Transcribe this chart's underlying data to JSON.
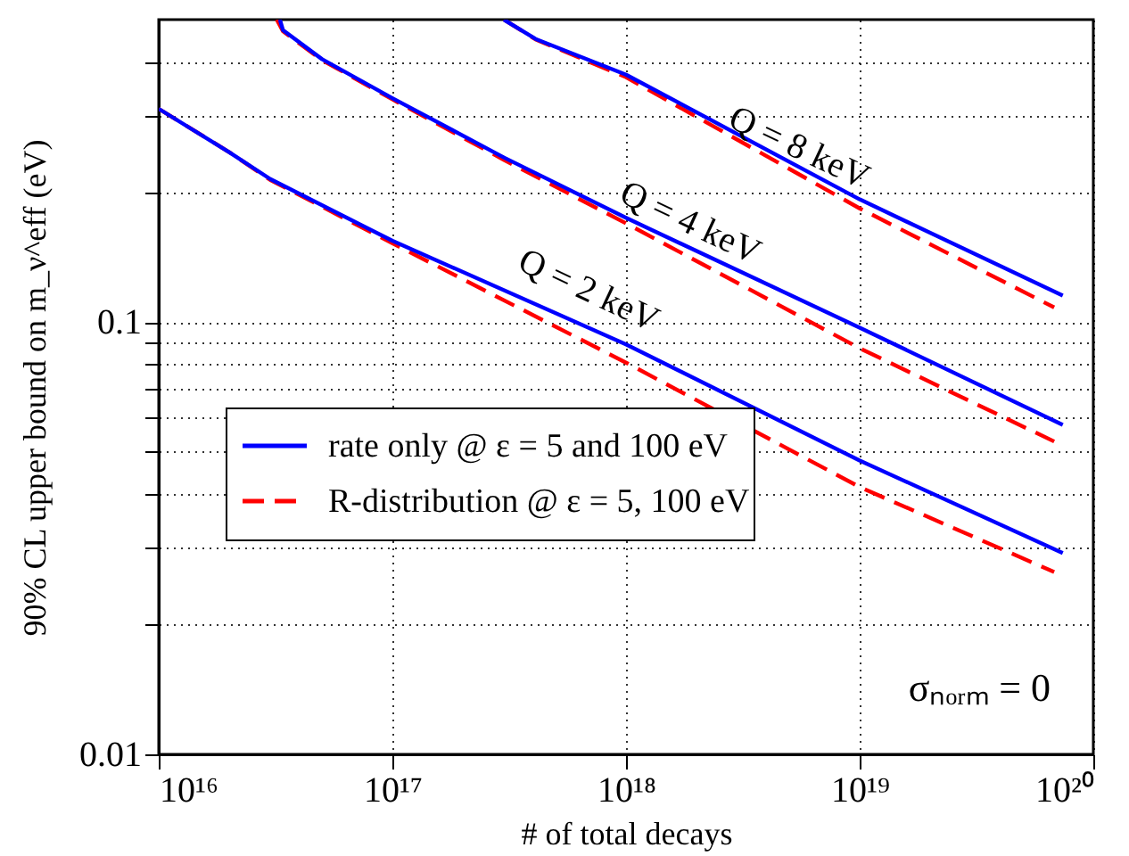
{
  "chart_data": {
    "type": "line",
    "xlabel": "# of total decays",
    "ylabel": "90% CL upper bound on m_ν^eff (eV)",
    "log": "xy",
    "grid": true,
    "legend": "bottom left",
    "xlim": [
      1e+16,
      1e+20
    ],
    "ylim": [
      0.01,
      0.5
    ],
    "xticks": [
      {
        "value": 1e+16,
        "label": "10¹⁶"
      },
      {
        "value": 1e+17,
        "label": "10¹⁷"
      },
      {
        "value": 1e+18,
        "label": "10¹⁸"
      },
      {
        "value": 1e+19,
        "label": "10¹⁹"
      },
      {
        "value": 1e+20,
        "label": "10²⁰"
      }
    ],
    "yticks": [
      0.01,
      {
        "value": 0.02,
        "label": null
      },
      {
        "value": 0.03,
        "label": null
      },
      {
        "value": 0.04,
        "label": null
      },
      {
        "value": 0.05,
        "label": null
      },
      {
        "value": 0.06,
        "label": null
      },
      {
        "value": 0.07,
        "label": null
      },
      {
        "value": 0.08,
        "label": null
      },
      {
        "value": 0.09,
        "label": null
      },
      0.1,
      {
        "value": 0.2,
        "label": null
      },
      {
        "value": 0.3,
        "label": null
      },
      {
        "value": 0.4,
        "label": null
      }
    ],
    "series": [
      {
        "name": "rate only @ ε = 5 and 100 eV",
        "color": "#0000ff",
        "line_style": "solid",
        "x": [
          1e+16,
          2e+16,
          3e+16,
          1e+17,
          1e+18,
          1e+19,
          7.4e+19
        ],
        "values": [
          0.311,
          0.247,
          0.214,
          0.154,
          0.0887,
          0.0478,
          0.0292
        ]
      },
      {
        "name": "R-distribution @ ε = 5, 100 eV",
        "color": "#ff0000",
        "line_style": "dashed",
        "x": [
          1e+16,
          2e+16,
          3e+16,
          1e+17,
          1e+18,
          1e+19,
          6.8e+19
        ],
        "values": [
          0.311,
          0.247,
          0.213,
          0.152,
          0.0805,
          0.0415,
          0.0264
        ]
      },
      {
        "color": "#0000ff",
        "line_style": "solid",
        "x": [
          3.3e+16,
          3.4e+16,
          5e+16,
          1e+17,
          3e+17,
          1e+18,
          1e+19,
          7.4e+19
        ],
        "values": [
          0.5,
          0.473,
          0.405,
          0.329,
          0.24,
          0.174,
          0.097,
          0.0578
        ]
      },
      {
        "color": "#ff0000",
        "line_style": "dashed",
        "x": [
          3.2e+16,
          3.4e+16,
          5e+16,
          1e+17,
          3e+17,
          1e+18,
          1e+19,
          6.8e+19
        ],
        "values": [
          0.5,
          0.47,
          0.403,
          0.327,
          0.237,
          0.169,
          0.0869,
          0.0529
        ]
      },
      {
        "color": "#0000ff",
        "line_style": "solid",
        "x": [
          3e+17,
          4.1e+17,
          1e+18,
          1e+19,
          7.4e+19
        ],
        "values": [
          0.5,
          0.451,
          0.373,
          0.192,
          0.115
        ]
      },
      {
        "color": "#ff0000",
        "line_style": "dashed",
        "x": [
          3e+17,
          4.1e+17,
          1e+18,
          1e+19,
          6.8e+19
        ],
        "values": [
          0.5,
          0.45,
          0.368,
          0.183,
          0.108
        ]
      }
    ],
    "annotations": [
      "Q = 2 keV",
      "Q = 4 keV",
      "Q = 8 keV",
      "σₙₒᵣₘ = 0"
    ]
  }
}
